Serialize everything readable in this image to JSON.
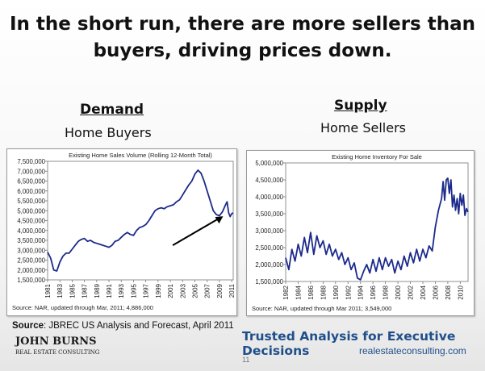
{
  "slide": {
    "title_line1": "In the short run, there are more sellers than",
    "title_line2": "buyers, driving prices down.",
    "demand_heading": "Demand",
    "demand_sub": "Home Buyers",
    "supply_heading": "Supply",
    "supply_sub": "Home Sellers",
    "source_label": "Source",
    "source_text": ": JBREC US Analysis and Forecast, April 2011",
    "logo_top": "JOHN BURNS",
    "logo_bottom": "REAL ESTATE CONSULTING",
    "tagline": "Trusted Analysis for Executive Decisions",
    "website": "realestateconsulting.com",
    "page_number": "11",
    "colors": {
      "line": "#1c2a8c",
      "tagline": "#1f4f8a"
    }
  },
  "chart_data": [
    {
      "type": "line",
      "title": "Existing Home Sales Volume (Rolling 12-Month Total)",
      "source_note": "Source: NAR, updated through Mar, 2011; 4,886,000",
      "ylim": [
        1500000,
        7500000
      ],
      "yticks": [
        1500000,
        2000000,
        2500000,
        3000000,
        3500000,
        4000000,
        4500000,
        5000000,
        5500000,
        6000000,
        6500000,
        7000000,
        7500000
      ],
      "ytick_labels": [
        "1,500,000",
        "2,000,000",
        "2,500,000",
        "3,000,000",
        "3,500,000",
        "4,000,000",
        "4,500,000",
        "5,000,000",
        "5,500,000",
        "6,000,000",
        "6,500,000",
        "7,000,000",
        "7,500,000"
      ],
      "xlim": [
        1981,
        2011.25
      ],
      "xtick_labels": [
        "1981",
        "1983",
        "1985",
        "1987",
        "1989",
        "1991",
        "1993",
        "1995",
        "1997",
        "1999",
        "2001",
        "2003",
        "2005",
        "2007",
        "2009",
        "2011"
      ],
      "grid": false,
      "annotation": "arrow pointing up to recent uptick",
      "series": [
        {
          "x": [
            1981,
            1981.5,
            1982,
            1982.5,
            1983,
            1983.5,
            1984,
            1984.5,
            1985,
            1985.5,
            1986,
            1986.5,
            1987,
            1987.5,
            1988,
            1988.5,
            1989,
            1989.5,
            1990,
            1990.5,
            1991,
            1991.5,
            1992,
            1992.5,
            1993,
            1993.5,
            1994,
            1994.5,
            1995,
            1995.5,
            1996,
            1996.5,
            1997,
            1997.5,
            1998,
            1998.5,
            1999,
            1999.5,
            2000,
            2000.5,
            2001,
            2001.5,
            2002,
            2002.5,
            2003,
            2003.5,
            2004,
            2004.5,
            2005,
            2005.5,
            2006,
            2006.5,
            2007,
            2007.5,
            2008,
            2008.5,
            2009,
            2009.5,
            2010,
            2010.25,
            2010.5,
            2010.75,
            2011,
            2011.25
          ],
          "values": [
            2900000,
            2600000,
            2000000,
            1950000,
            2400000,
            2700000,
            2850000,
            2850000,
            3050000,
            3250000,
            3450000,
            3550000,
            3600000,
            3450000,
            3500000,
            3400000,
            3350000,
            3300000,
            3250000,
            3200000,
            3150000,
            3250000,
            3450000,
            3500000,
            3650000,
            3800000,
            3900000,
            3800000,
            3750000,
            4000000,
            4150000,
            4200000,
            4300000,
            4500000,
            4750000,
            5000000,
            5100000,
            5150000,
            5100000,
            5200000,
            5250000,
            5300000,
            5450000,
            5550000,
            5800000,
            6050000,
            6300000,
            6500000,
            6850000,
            7050000,
            6900000,
            6500000,
            6000000,
            5500000,
            5000000,
            4800000,
            4750000,
            4950000,
            5300000,
            5450000,
            4900000,
            4700000,
            4850000,
            4886000
          ]
        }
      ]
    },
    {
      "type": "line",
      "title": "Existing Home Inventory For Sale",
      "source_note": "Source: NAR, updated through Mar 2011; 3,549,000",
      "ylim": [
        1500000,
        5000000
      ],
      "yticks": [
        1500000,
        2000000,
        2500000,
        3000000,
        3500000,
        4000000,
        4500000,
        5000000
      ],
      "ytick_labels": [
        "1,500,000",
        "2,000,000",
        "2,500,000",
        "3,000,000",
        "3,500,000",
        "4,000,000",
        "4,500,000",
        "5,000,000"
      ],
      "xlim": [
        1982,
        2011.25
      ],
      "xtick_labels": [
        "1982",
        "1984",
        "1986",
        "1988",
        "1990",
        "1992",
        "1994",
        "1996",
        "1998",
        "2000",
        "2002",
        "2004",
        "2006",
        "2008",
        "2010"
      ],
      "grid": false,
      "series": [
        {
          "x": [
            1982,
            1982.5,
            1983,
            1983.5,
            1984,
            1984.5,
            1985,
            1985.5,
            1986,
            1986.5,
            1987,
            1987.5,
            1988,
            1988.5,
            1989,
            1989.5,
            1990,
            1990.5,
            1991,
            1991.5,
            1992,
            1992.5,
            1993,
            1993.5,
            1994,
            1994.5,
            1995,
            1995.5,
            1996,
            1996.5,
            1997,
            1997.5,
            1998,
            1998.5,
            1999,
            1999.5,
            2000,
            2000.5,
            2001,
            2001.5,
            2002,
            2002.5,
            2003,
            2003.5,
            2004,
            2004.5,
            2005,
            2005.5,
            2006,
            2006.5,
            2007,
            2007.25,
            2007.5,
            2007.75,
            2008,
            2008.25,
            2008.5,
            2008.75,
            2009,
            2009.25,
            2009.5,
            2009.75,
            2010,
            2010.25,
            2010.5,
            2010.75,
            2011,
            2011.25
          ],
          "values": [
            2200000,
            1850000,
            2450000,
            2100000,
            2600000,
            2250000,
            2800000,
            2350000,
            2950000,
            2300000,
            2850000,
            2500000,
            2700000,
            2300000,
            2600000,
            2250000,
            2450000,
            2150000,
            2350000,
            2000000,
            2200000,
            1850000,
            2050000,
            1600000,
            1550000,
            1800000,
            2000000,
            1750000,
            2150000,
            1800000,
            2200000,
            1850000,
            2200000,
            1950000,
            2150000,
            1750000,
            2100000,
            1850000,
            2250000,
            1950000,
            2350000,
            2050000,
            2450000,
            2100000,
            2450000,
            2200000,
            2550000,
            2400000,
            3100000,
            3600000,
            3950000,
            4450000,
            3900000,
            4500000,
            4550000,
            4100000,
            4500000,
            3700000,
            4050000,
            3600000,
            3950000,
            3500000,
            4100000,
            3750000,
            4050000,
            3450000,
            3650000,
            3549000
          ]
        }
      ]
    }
  ]
}
